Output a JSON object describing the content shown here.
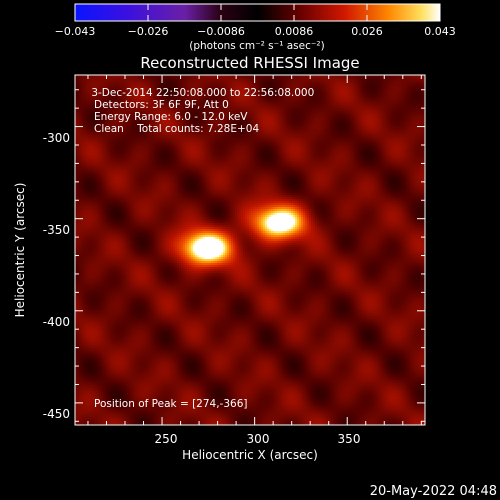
{
  "chart_data": {
    "type": "heatmap",
    "title": "Reconstructed RHESSI Image",
    "xlabel": "Heliocentric X (arcsec)",
    "ylabel": "Heliocentric Y (arcsec)",
    "xlim": [
      203,
      392
    ],
    "ylim": [
      -462,
      -272
    ],
    "xticks": [
      250,
      300,
      350
    ],
    "yticks": [
      -300,
      -350,
      -400,
      -450
    ],
    "colorbar": {
      "colormap": "red-temperature",
      "unit_label": "(photons cm⁻² s⁻¹ asec⁻²)",
      "range": [
        -0.043,
        0.043
      ],
      "tick_labels": [
        "−0.043",
        "−0.026",
        "−0.0086",
        "0.0086",
        "0.026",
        "0.043"
      ]
    },
    "info_lines": [
      " 3-Dec-2014 22:50:08.000 to 22:56:08.000",
      "Detectors: 3F 6F 9F, Att 0",
      "Energy Range: 6.0 - 12.0 keV",
      "Clean    Total counts: 7.28E+04"
    ],
    "peak_text": "Position of Peak = [274,-366]",
    "sources": [
      {
        "x": 274,
        "y": -366,
        "peak": 0.043
      },
      {
        "x": 313,
        "y": -352,
        "peak": 0.04
      }
    ],
    "timestamp": "20-May-2022 04:48"
  }
}
